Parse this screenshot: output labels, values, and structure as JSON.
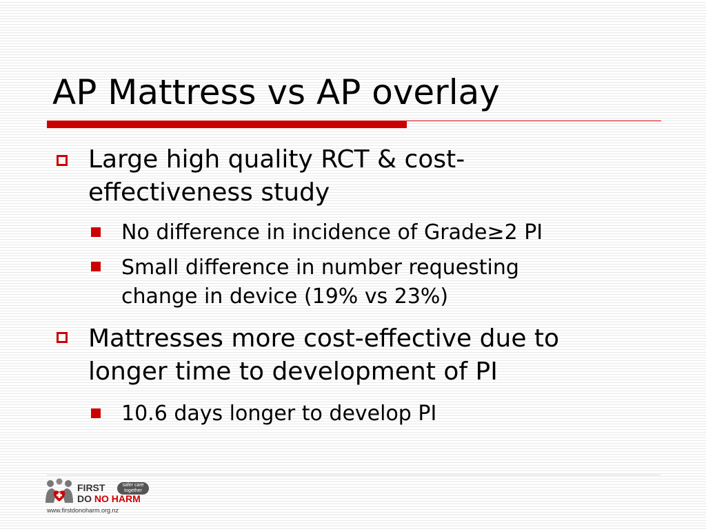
{
  "slide": {
    "title": "AP Mattress vs AP overlay",
    "accent_color": "#cc0000",
    "bullets": [
      {
        "lines": [
          "Large high quality RCT & cost-",
          "effectiveness study"
        ],
        "sub": [
          {
            "lines": [
              "No difference in incidence of Grade≥2 PI"
            ]
          },
          {
            "lines": [
              "Small difference in number requesting",
              "change in device (19% vs 23%)"
            ]
          }
        ]
      },
      {
        "lines": [
          "Mattresses more cost-effective due to",
          "longer time to development of PI"
        ],
        "sub": [
          {
            "lines": [
              "10.6 days longer to develop PI"
            ]
          }
        ]
      }
    ]
  },
  "logo": {
    "line1": "FIRST",
    "line2_a": "DO ",
    "line2_b": "NO HARM",
    "tagline_1": "safer care",
    "tagline_2": "together",
    "url": "www.firstdonoharm.org.nz"
  }
}
